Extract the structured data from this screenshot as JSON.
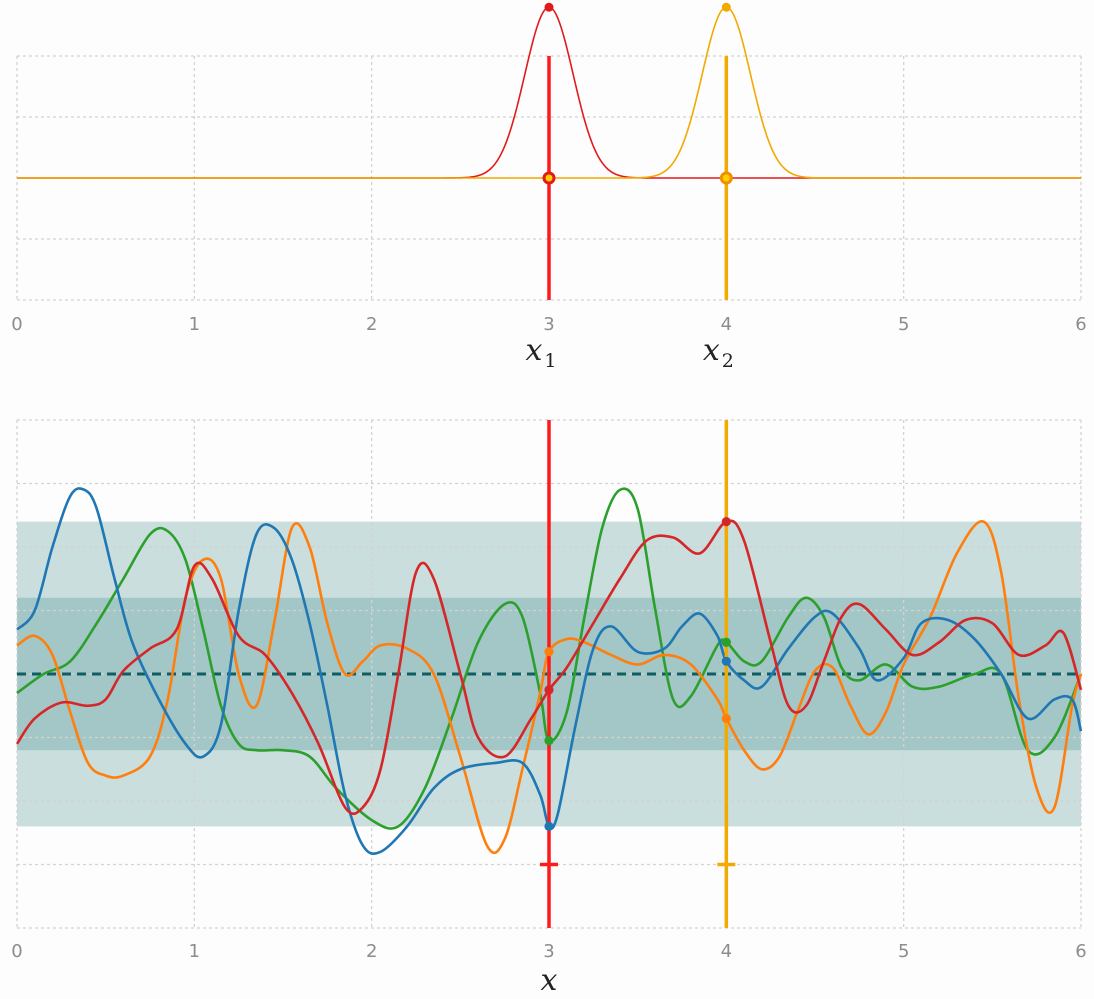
{
  "chart_data": [
    {
      "type": "line",
      "title": "",
      "xlim": [
        0,
        6
      ],
      "ylim": [
        -1,
        1
      ],
      "x_ticks": [
        "0",
        "1",
        "2",
        "3",
        "4",
        "5",
        "6"
      ],
      "grid": true,
      "markers": [
        {
          "label": "x",
          "sub": "1",
          "x": 3,
          "color": "#ff1a1a"
        },
        {
          "label": "x",
          "sub": "2",
          "x": 4,
          "color": "#f2a900"
        }
      ],
      "series": [
        {
          "color": "#e31a1c",
          "kind": "gaussian",
          "center": 3,
          "width": 0.3,
          "peak": 1.4
        },
        {
          "color": "#f2a900",
          "kind": "gaussian",
          "center": 4,
          "width": 0.3,
          "peak": 1.4
        }
      ]
    },
    {
      "type": "line",
      "title": "",
      "xlabel": "x",
      "xlim": [
        0,
        6
      ],
      "ylim": [
        -4,
        4
      ],
      "x_ticks": [
        "0",
        "1",
        "2",
        "3",
        "4",
        "5",
        "6"
      ],
      "grid": true,
      "mean": 0,
      "bands": [
        {
          "lower": -2.4,
          "upper": 2.4,
          "color": "#c9dedd"
        },
        {
          "lower": -1.2,
          "upper": 1.2,
          "color": "#a3c6c6"
        }
      ],
      "mean_color": "#0e5e63",
      "markers": [
        {
          "x": 3,
          "color": "#ff1a1a",
          "cross_y": -3
        },
        {
          "x": 4,
          "color": "#f2a900",
          "cross_y": -3
        }
      ],
      "series": [
        {
          "color": "#1f77b4",
          "points": [
            [
              0,
              0.7
            ],
            [
              0.1,
              1.0
            ],
            [
              0.2,
              2.0
            ],
            [
              0.3,
              2.8
            ],
            [
              0.38,
              2.9
            ],
            [
              0.45,
              2.6
            ],
            [
              0.55,
              1.5
            ],
            [
              0.65,
              0.5
            ],
            [
              0.8,
              -0.4
            ],
            [
              0.95,
              -1.1
            ],
            [
              1.05,
              -1.3
            ],
            [
              1.15,
              -0.8
            ],
            [
              1.25,
              1.0
            ],
            [
              1.35,
              2.2
            ],
            [
              1.45,
              2.3
            ],
            [
              1.55,
              1.8
            ],
            [
              1.65,
              0.8
            ],
            [
              1.75,
              -0.5
            ],
            [
              1.85,
              -1.9
            ],
            [
              1.95,
              -2.7
            ],
            [
              2.05,
              -2.8
            ],
            [
              2.2,
              -2.4
            ],
            [
              2.35,
              -1.8
            ],
            [
              2.5,
              -1.5
            ],
            [
              2.7,
              -1.4
            ],
            [
              2.85,
              -1.4
            ],
            [
              2.95,
              -1.9
            ],
            [
              3.0,
              -2.4
            ],
            [
              3.05,
              -2.2
            ],
            [
              3.15,
              -0.8
            ],
            [
              3.25,
              0.4
            ],
            [
              3.35,
              0.75
            ],
            [
              3.5,
              0.35
            ],
            [
              3.65,
              0.4
            ],
            [
              3.75,
              0.75
            ],
            [
              3.85,
              0.95
            ],
            [
              3.95,
              0.6
            ],
            [
              4.0,
              0.2
            ],
            [
              4.1,
              -0.1
            ],
            [
              4.2,
              -0.2
            ],
            [
              4.35,
              0.4
            ],
            [
              4.5,
              0.9
            ],
            [
              4.6,
              0.95
            ],
            [
              4.75,
              0.4
            ],
            [
              4.85,
              -0.1
            ],
            [
              5.0,
              0.25
            ],
            [
              5.1,
              0.8
            ],
            [
              5.25,
              0.85
            ],
            [
              5.4,
              0.55
            ],
            [
              5.55,
              0.0
            ],
            [
              5.7,
              -0.7
            ],
            [
              5.85,
              -0.4
            ],
            [
              5.95,
              -0.4
            ],
            [
              6.0,
              -0.9
            ]
          ]
        },
        {
          "color": "#ff7f0e",
          "points": [
            [
              0,
              0.45
            ],
            [
              0.1,
              0.6
            ],
            [
              0.2,
              0.3
            ],
            [
              0.3,
              -0.6
            ],
            [
              0.4,
              -1.4
            ],
            [
              0.5,
              -1.6
            ],
            [
              0.6,
              -1.6
            ],
            [
              0.75,
              -1.3
            ],
            [
              0.85,
              -0.4
            ],
            [
              0.95,
              1.2
            ],
            [
              1.05,
              1.8
            ],
            [
              1.15,
              1.5
            ],
            [
              1.25,
              0.0
            ],
            [
              1.35,
              -0.5
            ],
            [
              1.45,
              0.8
            ],
            [
              1.55,
              2.3
            ],
            [
              1.65,
              2.0
            ],
            [
              1.75,
              0.8
            ],
            [
              1.85,
              0.0
            ],
            [
              1.95,
              0.2
            ],
            [
              2.05,
              0.45
            ],
            [
              2.2,
              0.4
            ],
            [
              2.35,
              0.0
            ],
            [
              2.5,
              -1.3
            ],
            [
              2.65,
              -2.7
            ],
            [
              2.75,
              -2.6
            ],
            [
              2.85,
              -1.5
            ],
            [
              2.95,
              -0.3
            ],
            [
              3.0,
              0.35
            ],
            [
              3.1,
              0.55
            ],
            [
              3.2,
              0.5
            ],
            [
              3.35,
              0.3
            ],
            [
              3.5,
              0.15
            ],
            [
              3.65,
              0.3
            ],
            [
              3.8,
              0.15
            ],
            [
              3.95,
              -0.4
            ],
            [
              4.0,
              -0.7
            ],
            [
              4.1,
              -1.2
            ],
            [
              4.2,
              -1.5
            ],
            [
              4.3,
              -1.3
            ],
            [
              4.4,
              -0.6
            ],
            [
              4.5,
              0.05
            ],
            [
              4.6,
              0.1
            ],
            [
              4.7,
              -0.5
            ],
            [
              4.8,
              -0.95
            ],
            [
              4.9,
              -0.6
            ],
            [
              5.0,
              0.15
            ],
            [
              5.15,
              0.9
            ],
            [
              5.3,
              1.9
            ],
            [
              5.45,
              2.4
            ],
            [
              5.55,
              1.6
            ],
            [
              5.65,
              -0.4
            ],
            [
              5.75,
              -1.8
            ],
            [
              5.85,
              -2.1
            ],
            [
              5.95,
              -0.5
            ],
            [
              6.0,
              0.0
            ]
          ]
        },
        {
          "color": "#2ca02c",
          "points": [
            [
              0,
              -0.3
            ],
            [
              0.15,
              0.0
            ],
            [
              0.3,
              0.2
            ],
            [
              0.45,
              0.8
            ],
            [
              0.6,
              1.5
            ],
            [
              0.75,
              2.2
            ],
            [
              0.85,
              2.25
            ],
            [
              0.95,
              1.8
            ],
            [
              1.05,
              0.7
            ],
            [
              1.15,
              -0.5
            ],
            [
              1.25,
              -1.1
            ],
            [
              1.35,
              -1.2
            ],
            [
              1.5,
              -1.2
            ],
            [
              1.65,
              -1.3
            ],
            [
              1.8,
              -1.8
            ],
            [
              2.0,
              -2.3
            ],
            [
              2.15,
              -2.4
            ],
            [
              2.3,
              -1.8
            ],
            [
              2.45,
              -0.7
            ],
            [
              2.6,
              0.5
            ],
            [
              2.75,
              1.1
            ],
            [
              2.85,
              0.9
            ],
            [
              2.95,
              -0.3
            ],
            [
              3.0,
              -1.05
            ],
            [
              3.1,
              -0.6
            ],
            [
              3.2,
              0.9
            ],
            [
              3.3,
              2.3
            ],
            [
              3.4,
              2.9
            ],
            [
              3.5,
              2.6
            ],
            [
              3.6,
              1.0
            ],
            [
              3.7,
              -0.4
            ],
            [
              3.8,
              -0.35
            ],
            [
              3.95,
              0.45
            ],
            [
              4.0,
              0.5
            ],
            [
              4.1,
              0.2
            ],
            [
              4.2,
              0.2
            ],
            [
              4.35,
              0.9
            ],
            [
              4.45,
              1.2
            ],
            [
              4.55,
              0.9
            ],
            [
              4.65,
              0.1
            ],
            [
              4.75,
              -0.1
            ],
            [
              4.9,
              0.15
            ],
            [
              5.05,
              -0.2
            ],
            [
              5.2,
              -0.2
            ],
            [
              5.4,
              0.0
            ],
            [
              5.55,
              0.0
            ],
            [
              5.7,
              -1.2
            ],
            [
              5.85,
              -1.0
            ],
            [
              6.0,
              0.0
            ]
          ]
        },
        {
          "color": "#d62728",
          "points": [
            [
              0,
              -1.1
            ],
            [
              0.1,
              -0.7
            ],
            [
              0.25,
              -0.45
            ],
            [
              0.4,
              -0.5
            ],
            [
              0.5,
              -0.4
            ],
            [
              0.6,
              0.05
            ],
            [
              0.75,
              0.4
            ],
            [
              0.9,
              0.7
            ],
            [
              1.0,
              1.7
            ],
            [
              1.1,
              1.5
            ],
            [
              1.25,
              0.6
            ],
            [
              1.4,
              0.3
            ],
            [
              1.55,
              -0.3
            ],
            [
              1.7,
              -1.1
            ],
            [
              1.85,
              -2.1
            ],
            [
              1.95,
              -2.1
            ],
            [
              2.05,
              -1.5
            ],
            [
              2.15,
              0.0
            ],
            [
              2.25,
              1.6
            ],
            [
              2.35,
              1.5
            ],
            [
              2.5,
              0.0
            ],
            [
              2.6,
              -1.0
            ],
            [
              2.75,
              -1.3
            ],
            [
              2.9,
              -0.7
            ],
            [
              3.0,
              -0.25
            ],
            [
              3.1,
              0.1
            ],
            [
              3.25,
              0.8
            ],
            [
              3.4,
              1.5
            ],
            [
              3.55,
              2.1
            ],
            [
              3.7,
              2.15
            ],
            [
              3.85,
              1.9
            ],
            [
              4.0,
              2.4
            ],
            [
              4.1,
              2.1
            ],
            [
              4.25,
              0.5
            ],
            [
              4.35,
              -0.5
            ],
            [
              4.45,
              -0.5
            ],
            [
              4.55,
              0.2
            ],
            [
              4.65,
              0.9
            ],
            [
              4.75,
              1.1
            ],
            [
              4.9,
              0.7
            ],
            [
              5.05,
              0.3
            ],
            [
              5.2,
              0.5
            ],
            [
              5.35,
              0.85
            ],
            [
              5.5,
              0.8
            ],
            [
              5.65,
              0.3
            ],
            [
              5.8,
              0.45
            ],
            [
              5.9,
              0.65
            ],
            [
              6.0,
              -0.25
            ]
          ]
        }
      ]
    }
  ]
}
